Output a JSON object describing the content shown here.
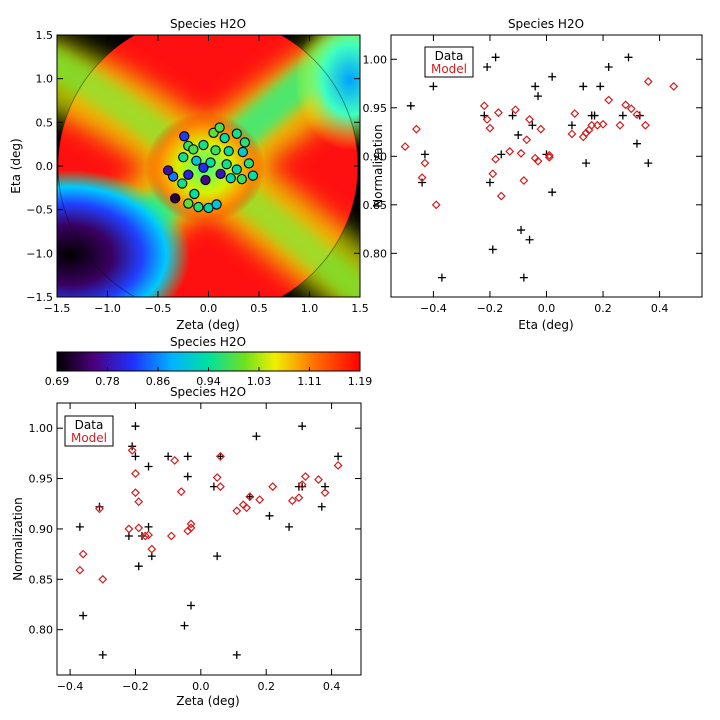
{
  "chart_data": [
    {
      "id": "map",
      "type": "heatmap",
      "title": "Species H2O",
      "xlabel": "Zeta (deg)",
      "ylabel": "Eta (deg)",
      "xlim": [
        -1.5,
        1.5
      ],
      "ylim": [
        -1.5,
        1.5
      ],
      "xticks": [
        "−1.5",
        "−1.0",
        "−0.5",
        "0.0",
        "0.5",
        "1.0",
        "1.5"
      ],
      "yticks": [
        "−1.5",
        "−1.0",
        "−0.5",
        "0.0",
        "0.5",
        "1.0",
        "1.5"
      ],
      "points": [
        {
          "x": -0.24,
          "y": 0.34,
          "c": 0.82
        },
        {
          "x": -0.2,
          "y": 0.23,
          "c": 0.97
        },
        {
          "x": -0.25,
          "y": 0.1,
          "c": 0.95
        },
        {
          "x": -0.15,
          "y": 0.19,
          "c": 0.98
        },
        {
          "x": 0.05,
          "y": 0.38,
          "c": 0.99
        },
        {
          "x": 0.11,
          "y": 0.44,
          "c": 0.98
        },
        {
          "x": 0.16,
          "y": 0.32,
          "c": 0.94
        },
        {
          "x": 0.28,
          "y": 0.37,
          "c": 0.95
        },
        {
          "x": 0.36,
          "y": 0.27,
          "c": 0.96
        },
        {
          "x": 0.34,
          "y": 0.16,
          "c": 0.91
        },
        {
          "x": 0.4,
          "y": 0.03,
          "c": 0.96
        },
        {
          "x": 0.44,
          "y": -0.11,
          "c": 0.94
        },
        {
          "x": 0.33,
          "y": -0.15,
          "c": 0.97
        },
        {
          "x": 0.22,
          "y": -0.14,
          "c": 0.93
        },
        {
          "x": 0.28,
          "y": -0.04,
          "c": 0.93
        },
        {
          "x": 0.18,
          "y": 0.02,
          "c": 0.95
        },
        {
          "x": 0.2,
          "y": 0.17,
          "c": 0.94
        },
        {
          "x": 0.07,
          "y": 0.18,
          "c": 0.97
        },
        {
          "x": -0.05,
          "y": 0.24,
          "c": 0.95
        },
        {
          "x": -0.12,
          "y": 0.06,
          "c": 0.9
        },
        {
          "x": 0.02,
          "y": 0.04,
          "c": 0.94
        },
        {
          "x": -0.05,
          "y": -0.02,
          "c": 0.81
        },
        {
          "x": 0.12,
          "y": -0.09,
          "c": 0.78
        },
        {
          "x": -0.03,
          "y": -0.16,
          "c": 0.76
        },
        {
          "x": -0.2,
          "y": -0.1,
          "c": 0.8
        },
        {
          "x": -0.35,
          "y": -0.12,
          "c": 0.85
        },
        {
          "x": -0.4,
          "y": -0.05,
          "c": 0.77
        },
        {
          "x": -0.33,
          "y": -0.37,
          "c": 0.72
        },
        {
          "x": -0.2,
          "y": -0.43,
          "c": 0.99
        },
        {
          "x": -0.1,
          "y": -0.47,
          "c": 0.96
        },
        {
          "x": 0.0,
          "y": -0.48,
          "c": 0.93
        },
        {
          "x": 0.08,
          "y": -0.44,
          "c": 0.9
        },
        {
          "x": -0.14,
          "y": -0.32,
          "c": 0.94
        },
        {
          "x": -0.26,
          "y": -0.2,
          "c": 0.95
        }
      ]
    },
    {
      "id": "colorbar",
      "type": "heatmap",
      "title": "Species H2O",
      "range": [
        0.69,
        1.19
      ],
      "ticks": [
        "0.69",
        "0.78",
        "0.86",
        "0.94",
        "1.03",
        "1.11",
        "1.19"
      ]
    },
    {
      "id": "eta",
      "type": "scatter",
      "title": "Species H2O",
      "xlabel": "Eta (deg)",
      "ylabel": "Normalization",
      "xlim": [
        -0.55,
        0.55
      ],
      "ylim": [
        0.755,
        1.025
      ],
      "xticks": [
        {
          "v": -0.4,
          "t": "−0.4"
        },
        {
          "v": -0.2,
          "t": "−0.2"
        },
        {
          "v": 0.0,
          "t": "0.0"
        },
        {
          "v": 0.2,
          "t": "0.2"
        },
        {
          "v": 0.4,
          "t": "0.4"
        }
      ],
      "yticks": [
        {
          "v": 0.8,
          "t": "0.80"
        },
        {
          "v": 0.85,
          "t": "0.85"
        },
        {
          "v": 0.9,
          "t": "0.90"
        },
        {
          "v": 0.95,
          "t": "0.95"
        },
        {
          "v": 1.0,
          "t": "1.00"
        }
      ],
      "legend": {
        "position": "top-left",
        "entries": [
          "Data",
          "Model"
        ]
      },
      "series": [
        {
          "name": "Data",
          "marker": "plus",
          "color": "#000000",
          "x": [
            -0.48,
            -0.44,
            -0.43,
            -0.4,
            -0.37,
            -0.22,
            -0.21,
            -0.2,
            -0.19,
            -0.18,
            -0.16,
            -0.12,
            -0.1,
            -0.09,
            -0.08,
            -0.06,
            -0.05,
            -0.04,
            -0.03,
            0.0,
            0.02,
            0.02,
            0.09,
            0.13,
            0.14,
            0.16,
            0.17,
            0.19,
            0.22,
            0.27,
            0.29,
            0.32,
            0.33,
            0.36
          ],
          "y": [
            0.952,
            0.873,
            0.902,
            0.972,
            0.775,
            0.942,
            0.992,
            0.873,
            0.804,
            1.002,
            0.902,
            0.942,
            0.922,
            0.824,
            0.775,
            0.814,
            0.932,
            0.972,
            0.962,
            0.902,
            0.982,
            0.863,
            0.932,
            0.972,
            0.893,
            0.942,
            0.942,
            0.972,
            0.992,
            0.942,
            1.002,
            0.913,
            0.942,
            0.893
          ]
        },
        {
          "name": "Model",
          "marker": "diamond",
          "color": "#d21e1e",
          "x": [
            -0.5,
            -0.46,
            -0.44,
            -0.43,
            -0.39,
            -0.22,
            -0.21,
            -0.2,
            -0.19,
            -0.18,
            -0.17,
            -0.16,
            -0.13,
            -0.11,
            -0.09,
            -0.08,
            -0.07,
            -0.06,
            -0.04,
            -0.03,
            -0.02,
            0.01,
            0.01,
            0.09,
            0.1,
            0.13,
            0.14,
            0.15,
            0.16,
            0.18,
            0.2,
            0.22,
            0.26,
            0.28,
            0.3,
            0.32,
            0.35,
            0.36,
            0.45
          ],
          "y": [
            0.91,
            0.928,
            0.878,
            0.893,
            0.85,
            0.952,
            0.938,
            0.929,
            0.882,
            0.897,
            0.945,
            0.859,
            0.905,
            0.948,
            0.903,
            0.875,
            0.917,
            0.938,
            0.898,
            0.895,
            0.928,
            0.901,
            0.899,
            0.923,
            0.944,
            0.92,
            0.924,
            0.927,
            0.932,
            0.932,
            0.933,
            0.958,
            0.932,
            0.953,
            0.949,
            0.943,
            0.932,
            0.977,
            0.972
          ]
        }
      ]
    },
    {
      "id": "zeta",
      "type": "scatter",
      "title": "Species H2O",
      "xlabel": "Zeta (deg)",
      "ylabel": "Normalization",
      "xlim": [
        -0.44,
        0.49
      ],
      "ylim": [
        0.755,
        1.025
      ],
      "xticks": [
        {
          "v": -0.4,
          "t": "−0.4"
        },
        {
          "v": -0.2,
          "t": "−0.2"
        },
        {
          "v": 0.0,
          "t": "0.0"
        },
        {
          "v": 0.2,
          "t": "0.2"
        },
        {
          "v": 0.4,
          "t": "0.4"
        }
      ],
      "yticks": [
        {
          "v": 0.8,
          "t": "0.80"
        },
        {
          "v": 0.85,
          "t": "0.85"
        },
        {
          "v": 0.9,
          "t": "0.90"
        },
        {
          "v": 0.95,
          "t": "0.95"
        },
        {
          "v": 1.0,
          "t": "1.00"
        }
      ],
      "legend": {
        "position": "top-left",
        "entries": [
          "Data",
          "Model"
        ]
      },
      "series": [
        {
          "name": "Data",
          "marker": "plus",
          "color": "#000000",
          "x": [
            -0.37,
            -0.36,
            -0.31,
            -0.3,
            -0.22,
            -0.21,
            -0.2,
            -0.2,
            -0.19,
            -0.18,
            -0.16,
            -0.16,
            -0.15,
            -0.1,
            -0.05,
            -0.04,
            -0.04,
            -0.03,
            0.04,
            0.05,
            0.06,
            0.11,
            0.15,
            0.17,
            0.21,
            0.27,
            0.3,
            0.31,
            0.31,
            0.37,
            0.38,
            0.42
          ],
          "y": [
            0.902,
            0.814,
            0.922,
            0.775,
            0.893,
            0.982,
            1.002,
            0.972,
            0.863,
            0.893,
            0.902,
            0.962,
            0.873,
            0.972,
            0.804,
            0.952,
            0.972,
            0.824,
            0.942,
            0.873,
            0.972,
            0.775,
            0.932,
            0.992,
            0.913,
            0.902,
            0.942,
            1.002,
            0.942,
            0.922,
            0.942,
            0.972
          ]
        },
        {
          "name": "Model",
          "marker": "diamond",
          "color": "#d21e1e",
          "x": [
            -0.37,
            -0.36,
            -0.31,
            -0.3,
            -0.22,
            -0.21,
            -0.2,
            -0.2,
            -0.19,
            -0.19,
            -0.17,
            -0.16,
            -0.15,
            -0.09,
            -0.08,
            -0.06,
            -0.04,
            -0.03,
            -0.03,
            0.05,
            0.06,
            0.06,
            0.11,
            0.13,
            0.14,
            0.15,
            0.18,
            0.22,
            0.28,
            0.3,
            0.31,
            0.32,
            0.36,
            0.38,
            0.42
          ],
          "y": [
            0.859,
            0.875,
            0.92,
            0.85,
            0.9,
            0.978,
            0.955,
            0.936,
            0.901,
            0.927,
            0.893,
            0.894,
            0.88,
            0.893,
            0.968,
            0.937,
            0.898,
            0.901,
            0.905,
            0.951,
            0.942,
            0.972,
            0.918,
            0.924,
            0.921,
            0.932,
            0.929,
            0.942,
            0.928,
            0.931,
            0.944,
            0.952,
            0.949,
            0.936,
            0.963
          ]
        }
      ]
    }
  ]
}
